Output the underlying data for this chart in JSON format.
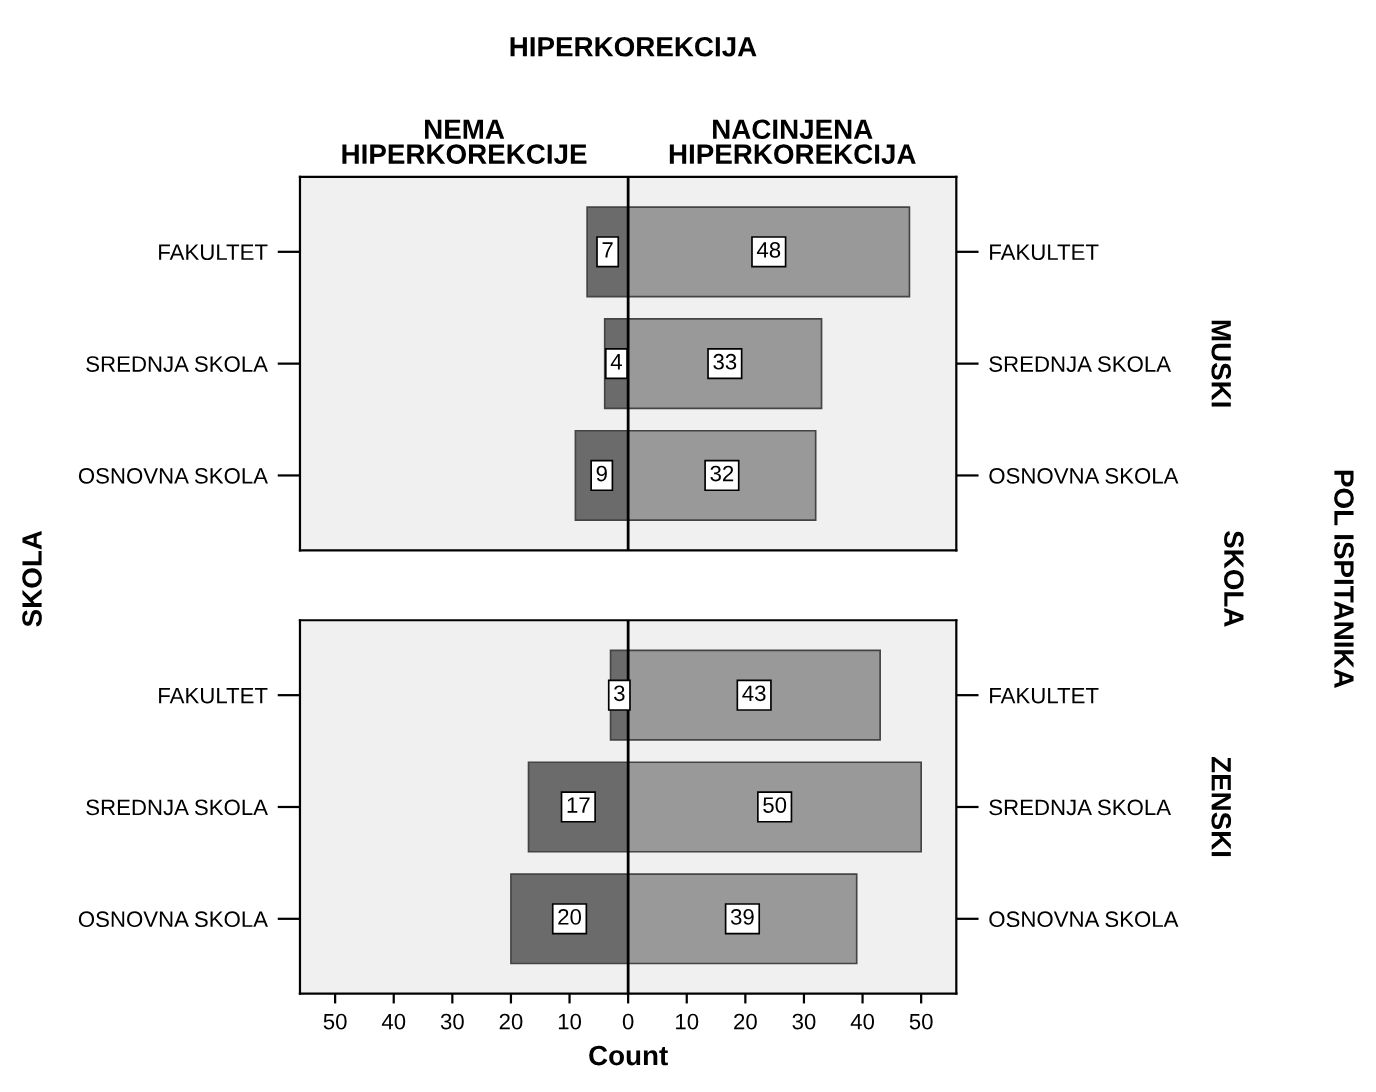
{
  "chart_data": [
    {
      "type": "bar",
      "orientation": "horizontal",
      "title": "HIPERKOREKCIJA",
      "ylabel": "SKOLA",
      "y2label": "SKOLA",
      "annotations": [
        "MUSKI",
        "POL ISPITANIKA"
      ],
      "categories": [
        "FAKULTET",
        "SREDNJA SKOLA",
        "OSNOVNA SKOLA"
      ],
      "data_labels": true,
      "series": [
        {
          "name": "NEMA\nHIPERKOREKCIJE",
          "color": "#6b6b6b",
          "values": [
            7,
            4,
            9
          ],
          "base": [
            -7,
            -4,
            -9
          ]
        },
        {
          "name": "NACINJENA\nHIPERKOREKCIJA",
          "color": "#999999",
          "values": [
            48,
            33,
            32
          ]
        }
      ],
      "xlim": [
        -56,
        56
      ],
      "tick_labels": "y",
      "ref_lines": [
        {
          "axis": "x",
          "value": 0,
          "color": "#000000"
        }
      ]
    },
    {
      "type": "bar",
      "orientation": "horizontal",
      "annotations": [
        "ZENSKI"
      ],
      "xlabel": "Count",
      "categories": [
        "FAKULTET",
        "SREDNJA SKOLA",
        "OSNOVNA SKOLA"
      ],
      "data_labels": true,
      "series": [
        {
          "color": "#6b6b6b",
          "values": [
            3,
            17,
            20
          ],
          "base": [
            -3,
            -17,
            -20
          ]
        },
        {
          "color": "#999999",
          "values": [
            43,
            50,
            39
          ]
        }
      ],
      "xlim": [
        -56,
        56
      ],
      "xticks": [
        {
          "value": -50,
          "label": "50"
        },
        {
          "value": -40,
          "label": "40"
        },
        {
          "value": -30,
          "label": "30"
        },
        {
          "value": -20,
          "label": "20"
        },
        {
          "value": -10,
          "label": "10"
        },
        0,
        10,
        20,
        30,
        40,
        50
      ],
      "ref_lines": [
        {
          "axis": "x",
          "value": 0,
          "color": "#000000"
        }
      ]
    }
  ]
}
